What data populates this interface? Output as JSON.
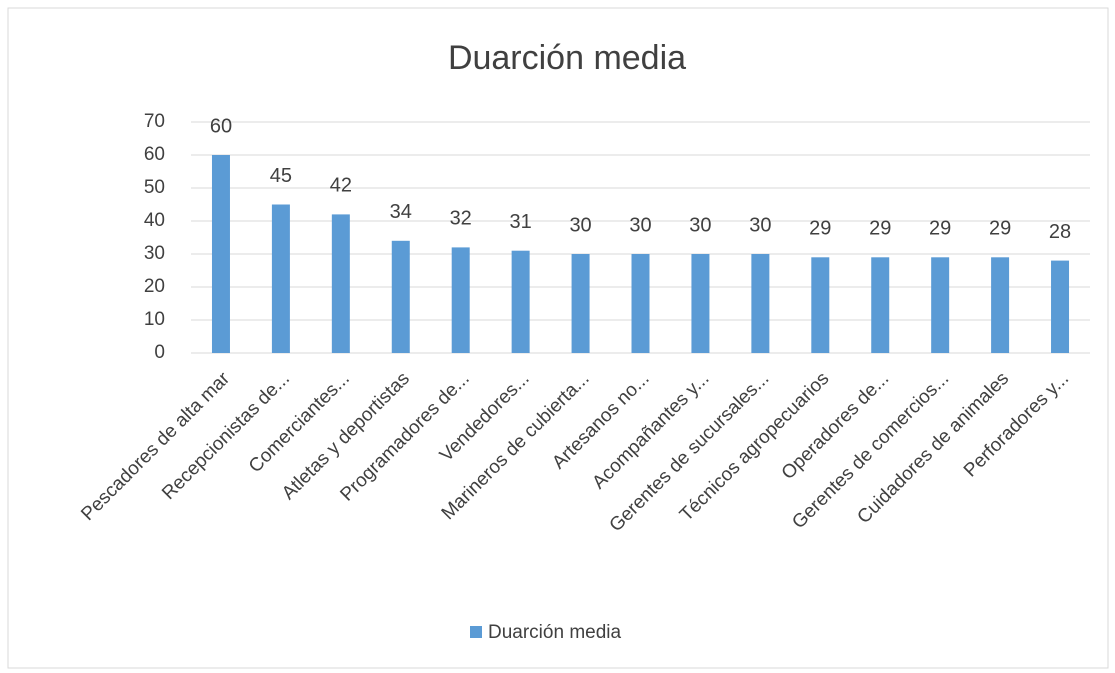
{
  "chart_data": {
    "type": "bar",
    "title": "Duarción media",
    "categories": [
      "Pescadores de alta mar",
      "Recepcionistas de...",
      "Comerciantes...",
      "Atletas y deportistas",
      "Programadores de...",
      "Vendedores...",
      "Marineros de cubierta...",
      "Artesanos no...",
      "Acompañantes y...",
      "Gerentes de sucursales...",
      "Técnicos agropecuarios",
      "Operadores de...",
      "Gerentes de comercios...",
      "Cuidadores de animales",
      "Perforadores y..."
    ],
    "series": [
      {
        "name": "Duarción media",
        "color": "#5b9bd5",
        "values": [
          60,
          45,
          42,
          34,
          32,
          31,
          30,
          30,
          30,
          30,
          29,
          29,
          29,
          29,
          28
        ]
      }
    ],
    "ylim": [
      0,
      70
    ],
    "yticks": [
      0,
      10,
      20,
      30,
      40,
      50,
      60,
      70
    ],
    "grid": true,
    "legend": "bottom"
  }
}
